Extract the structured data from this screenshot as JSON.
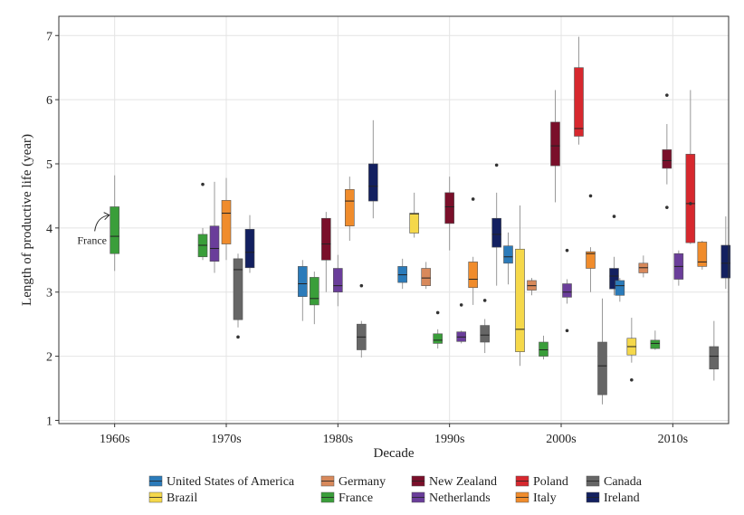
{
  "chart_data": {
    "type": "box",
    "title": "",
    "xlabel": "Decade",
    "ylabel": "Length of productive life (year)",
    "ylim": [
      0.95,
      7.3
    ],
    "yticks": [
      "1",
      "2",
      "3",
      "4",
      "5",
      "6",
      "7"
    ],
    "categories": [
      "1960s",
      "1970s",
      "1980s",
      "1990s",
      "2000s",
      "2010s"
    ],
    "grid": true,
    "legend_position": "bottom",
    "annotation": "France",
    "series": [
      {
        "name": "United States of America",
        "color": "#2b7bba"
      },
      {
        "name": "Brazil",
        "color": "#f5d84a"
      },
      {
        "name": "Germany",
        "color": "#d8895b"
      },
      {
        "name": "France",
        "color": "#3a9e3a"
      },
      {
        "name": "New Zealand",
        "color": "#7a0f2a"
      },
      {
        "name": "Netherlands",
        "color": "#6a3d9a"
      },
      {
        "name": "Poland",
        "color": "#d7282e"
      },
      {
        "name": "Italy",
        "color": "#f08c2c"
      },
      {
        "name": "Canada",
        "color": "#666666"
      },
      {
        "name": "Ireland",
        "color": "#132060"
      }
    ],
    "boxes": [
      {
        "decade": "1960s",
        "series": "France",
        "lo": 3.33,
        "q1": 3.6,
        "med": 3.87,
        "q3": 4.33,
        "hi": 4.82,
        "outliers": []
      },
      {
        "decade": "1970s",
        "series": "France",
        "lo": 3.5,
        "q1": 3.55,
        "med": 3.73,
        "q3": 3.9,
        "hi": 4.0,
        "outliers": [
          4.68
        ]
      },
      {
        "decade": "1970s",
        "series": "Netherlands",
        "lo": 3.3,
        "q1": 3.48,
        "med": 3.68,
        "q3": 4.03,
        "hi": 4.72,
        "outliers": []
      },
      {
        "decade": "1970s",
        "series": "Italy",
        "lo": 3.5,
        "q1": 3.75,
        "med": 4.23,
        "q3": 4.43,
        "hi": 4.78,
        "outliers": []
      },
      {
        "decade": "1970s",
        "series": "Canada",
        "lo": 2.45,
        "q1": 2.57,
        "med": 3.35,
        "q3": 3.52,
        "hi": 3.6,
        "outliers": [
          2.3
        ]
      },
      {
        "decade": "1970s",
        "series": "Ireland",
        "lo": 3.3,
        "q1": 3.38,
        "med": 3.62,
        "q3": 3.98,
        "hi": 4.2,
        "outliers": []
      },
      {
        "decade": "1980s",
        "series": "United States of America",
        "lo": 2.55,
        "q1": 2.93,
        "med": 3.13,
        "q3": 3.4,
        "hi": 3.5,
        "outliers": []
      },
      {
        "decade": "1980s",
        "series": "France",
        "lo": 2.5,
        "q1": 2.8,
        "med": 2.9,
        "q3": 3.23,
        "hi": 3.32,
        "outliers": []
      },
      {
        "decade": "1980s",
        "series": "New Zealand",
        "lo": 3.0,
        "q1": 3.5,
        "med": 3.75,
        "q3": 4.15,
        "hi": 4.25,
        "outliers": []
      },
      {
        "decade": "1980s",
        "series": "Netherlands",
        "lo": 2.78,
        "q1": 3.0,
        "med": 3.1,
        "q3": 3.37,
        "hi": 3.58,
        "outliers": []
      },
      {
        "decade": "1980s",
        "series": "Italy",
        "lo": 3.8,
        "q1": 4.03,
        "med": 4.42,
        "q3": 4.6,
        "hi": 4.8,
        "outliers": []
      },
      {
        "decade": "1980s",
        "series": "Canada",
        "lo": 1.98,
        "q1": 2.1,
        "med": 2.3,
        "q3": 2.5,
        "hi": 2.55,
        "outliers": [
          3.1
        ]
      },
      {
        "decade": "1980s",
        "series": "Ireland",
        "lo": 4.15,
        "q1": 4.42,
        "med": 4.65,
        "q3": 5.0,
        "hi": 5.68,
        "outliers": []
      },
      {
        "decade": "1990s",
        "series": "United States of America",
        "lo": 3.05,
        "q1": 3.15,
        "med": 3.27,
        "q3": 3.4,
        "hi": 3.52,
        "outliers": []
      },
      {
        "decade": "1990s",
        "series": "Brazil",
        "lo": 3.85,
        "q1": 3.92,
        "med": 4.22,
        "q3": 4.23,
        "hi": 4.55,
        "outliers": []
      },
      {
        "decade": "1990s",
        "series": "Germany",
        "lo": 3.05,
        "q1": 3.1,
        "med": 3.22,
        "q3": 3.37,
        "hi": 3.47,
        "outliers": []
      },
      {
        "decade": "1990s",
        "series": "France",
        "lo": 2.12,
        "q1": 2.2,
        "med": 2.25,
        "q3": 2.35,
        "hi": 2.42,
        "outliers": [
          2.68
        ]
      },
      {
        "decade": "1990s",
        "series": "New Zealand",
        "lo": 3.65,
        "q1": 4.07,
        "med": 4.33,
        "q3": 4.55,
        "hi": 4.8,
        "outliers": []
      },
      {
        "decade": "1990s",
        "series": "Netherlands",
        "lo": 2.2,
        "q1": 2.23,
        "med": 2.3,
        "q3": 2.38,
        "hi": 2.4,
        "outliers": [
          2.8
        ]
      },
      {
        "decade": "1990s",
        "series": "Italy",
        "lo": 2.8,
        "q1": 3.07,
        "med": 3.2,
        "q3": 3.47,
        "hi": 3.55,
        "outliers": [
          4.45
        ]
      },
      {
        "decade": "1990s",
        "series": "Canada",
        "lo": 2.05,
        "q1": 2.22,
        "med": 2.33,
        "q3": 2.48,
        "hi": 2.58,
        "outliers": [
          2.87
        ]
      },
      {
        "decade": "1990s",
        "series": "Ireland",
        "lo": 3.1,
        "q1": 3.7,
        "med": 3.9,
        "q3": 4.15,
        "hi": 4.55,
        "outliers": [
          4.98
        ]
      },
      {
        "decade": "2000s",
        "series": "United States of America",
        "lo": 3.12,
        "q1": 3.45,
        "med": 3.55,
        "q3": 3.72,
        "hi": 3.93,
        "outliers": []
      },
      {
        "decade": "2000s",
        "series": "Brazil",
        "lo": 1.85,
        "q1": 2.07,
        "med": 2.42,
        "q3": 3.67,
        "hi": 4.35,
        "outliers": []
      },
      {
        "decade": "2000s",
        "series": "Germany",
        "lo": 2.95,
        "q1": 3.03,
        "med": 3.1,
        "q3": 3.18,
        "hi": 3.22,
        "outliers": []
      },
      {
        "decade": "2000s",
        "series": "France",
        "lo": 1.95,
        "q1": 2.0,
        "med": 2.1,
        "q3": 2.22,
        "hi": 2.32,
        "outliers": []
      },
      {
        "decade": "2000s",
        "series": "New Zealand",
        "lo": 4.4,
        "q1": 4.97,
        "med": 5.28,
        "q3": 5.65,
        "hi": 6.15,
        "outliers": []
      },
      {
        "decade": "2000s",
        "series": "Netherlands",
        "lo": 2.82,
        "q1": 2.92,
        "med": 3.0,
        "q3": 3.13,
        "hi": 3.2,
        "outliers": [
          3.65,
          2.4
        ]
      },
      {
        "decade": "2000s",
        "series": "Poland",
        "lo": 5.3,
        "q1": 5.43,
        "med": 5.55,
        "q3": 6.5,
        "hi": 6.98,
        "outliers": []
      },
      {
        "decade": "2000s",
        "series": "Italy",
        "lo": 3.0,
        "q1": 3.37,
        "med": 3.6,
        "q3": 3.63,
        "hi": 3.7,
        "outliers": [
          4.5
        ]
      },
      {
        "decade": "2000s",
        "series": "Canada",
        "lo": 1.25,
        "q1": 1.4,
        "med": 1.85,
        "q3": 2.22,
        "hi": 2.9,
        "outliers": []
      },
      {
        "decade": "2000s",
        "series": "Ireland",
        "lo": 2.95,
        "q1": 3.05,
        "med": 3.25,
        "q3": 3.37,
        "hi": 3.55,
        "outliers": [
          4.18
        ]
      },
      {
        "decade": "2010s",
        "series": "United States of America",
        "lo": 2.85,
        "q1": 2.95,
        "med": 3.1,
        "q3": 3.18,
        "hi": 3.22,
        "outliers": []
      },
      {
        "decade": "2010s",
        "series": "Brazil",
        "lo": 1.9,
        "q1": 2.02,
        "med": 2.15,
        "q3": 2.28,
        "hi": 2.6,
        "outliers": [
          1.63
        ]
      },
      {
        "decade": "2010s",
        "series": "Germany",
        "lo": 3.23,
        "q1": 3.3,
        "med": 3.38,
        "q3": 3.45,
        "hi": 3.57,
        "outliers": []
      },
      {
        "decade": "2010s",
        "series": "France",
        "lo": 2.1,
        "q1": 2.12,
        "med": 2.2,
        "q3": 2.25,
        "hi": 2.4,
        "outliers": []
      },
      {
        "decade": "2010s",
        "series": "New Zealand",
        "lo": 4.68,
        "q1": 4.93,
        "med": 5.05,
        "q3": 5.22,
        "hi": 5.62,
        "outliers": [
          6.07,
          4.32
        ]
      },
      {
        "decade": "2010s",
        "series": "Netherlands",
        "lo": 3.1,
        "q1": 3.2,
        "med": 3.4,
        "q3": 3.6,
        "hi": 3.65,
        "outliers": []
      },
      {
        "decade": "2010s",
        "series": "Poland",
        "lo": 3.75,
        "q1": 3.77,
        "med": 4.38,
        "q3": 5.15,
        "hi": 6.15,
        "outliers": [
          4.38
        ]
      },
      {
        "decade": "2010s",
        "series": "Italy",
        "lo": 3.35,
        "q1": 3.4,
        "med": 3.47,
        "q3": 3.78,
        "hi": 3.8,
        "outliers": []
      },
      {
        "decade": "2010s",
        "series": "Canada",
        "lo": 1.62,
        "q1": 1.8,
        "med": 2.0,
        "q3": 2.15,
        "hi": 2.55,
        "outliers": []
      },
      {
        "decade": "2010s",
        "series": "Ireland",
        "lo": 3.05,
        "q1": 3.22,
        "med": 3.45,
        "q3": 3.73,
        "hi": 4.18,
        "outliers": []
      }
    ]
  }
}
